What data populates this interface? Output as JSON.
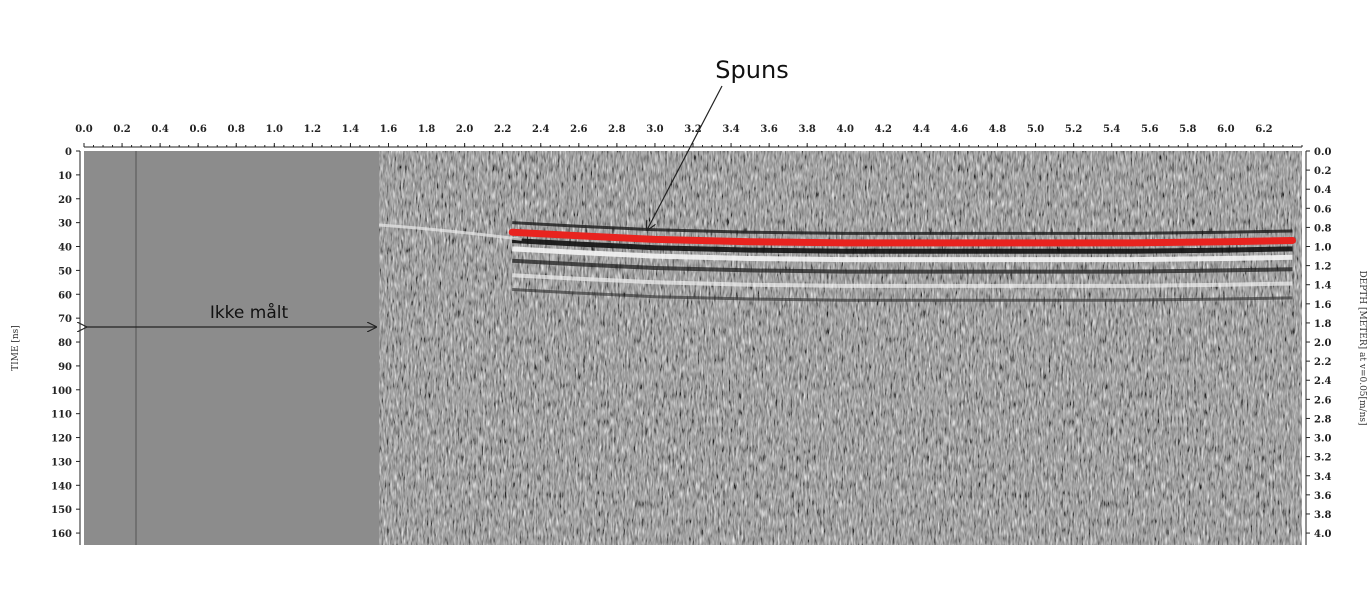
{
  "chart_data": {
    "type": "heatmap",
    "description_kind": "ground-penetrating-radar-profile",
    "x_ticks": [
      "0.0",
      "0.2",
      "0.4",
      "0.6",
      "0.8",
      "1.0",
      "1.2",
      "1.4",
      "1.6",
      "1.8",
      "2.0",
      "2.2",
      "2.4",
      "2.6",
      "2.8",
      "3.0",
      "3.2",
      "3.4",
      "3.6",
      "3.8",
      "4.0",
      "4.2",
      "4.4",
      "4.6",
      "4.8",
      "5.0",
      "5.2",
      "5.4",
      "5.6",
      "5.8",
      "6.0",
      "6.2"
    ],
    "xlim": [
      0.0,
      6.4
    ],
    "y_ticks": [
      "0",
      "10",
      "20",
      "30",
      "40",
      "50",
      "60",
      "70",
      "80",
      "90",
      "100",
      "110",
      "120",
      "130",
      "140",
      "150",
      "160"
    ],
    "ylim": [
      0,
      165
    ],
    "ylabel": "TIME [ns]",
    "y2_ticks": [
      "0.0",
      "0.2",
      "0.4",
      "0.6",
      "0.8",
      "1.0",
      "1.2",
      "1.4",
      "1.6",
      "1.8",
      "2.0",
      "2.2",
      "2.4",
      "2.6",
      "2.8",
      "3.0",
      "3.2",
      "3.4",
      "3.6",
      "3.8",
      "4.0"
    ],
    "y2lim": [
      0.0,
      4.125
    ],
    "y2label": "DEPTH [METER] at v=0.05[m/ns]",
    "not_measured_until_x": 1.55,
    "reflector": {
      "name": "Spuns",
      "color": "#e8231f",
      "x": [
        2.25,
        2.6,
        3.0,
        3.5,
        4.0,
        4.5,
        5.0,
        5.5,
        6.0,
        6.35
      ],
      "y": [
        34,
        35.5,
        37,
        38,
        38.5,
        38.5,
        38.5,
        38.5,
        38,
        37.5
      ]
    },
    "annotations": {
      "spuns_label": "Spuns",
      "ikke_maalt_label": "Ikke målt"
    }
  }
}
